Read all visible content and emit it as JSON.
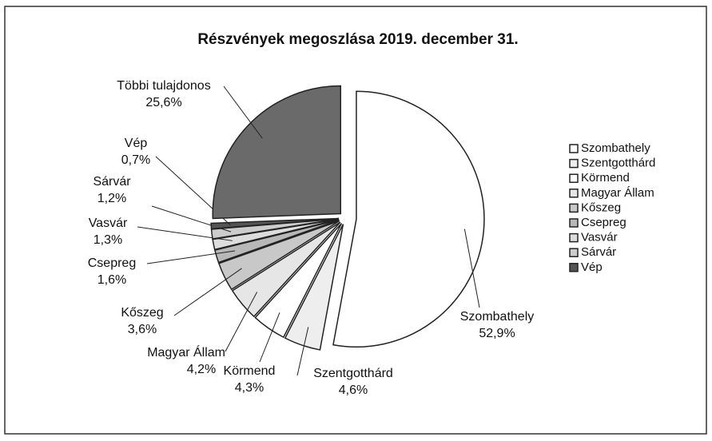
{
  "chart_data": {
    "type": "pie",
    "title": "Részvények megoszlása   2019. december 31.",
    "categories": [
      "Szombathely",
      "Szentgotthárd",
      "Körmend",
      "Magyar Állam",
      "Kőszeg",
      "Csepreg",
      "Vasvár",
      "Sárvár",
      "Vép",
      "Többi tulajdonos"
    ],
    "values": [
      52.9,
      4.6,
      4.3,
      4.2,
      3.6,
      1.6,
      1.3,
      1.2,
      0.7,
      25.6
    ],
    "value_labels": [
      "52,9%",
      "4,6%",
      "4,3%",
      "4,2%",
      "3,6%",
      "1,6%",
      "1,3%",
      "1,2%",
      "0,7%",
      "25,6%"
    ],
    "colors": [
      "#ffffff",
      "#eeeeee",
      "#ffffff",
      "#e6e6e6",
      "#c8c8c8",
      "#b8b8b8",
      "#dddddd",
      "#cccccc",
      "#555555",
      "#6a6a6a"
    ],
    "legend": [
      "Szombathely",
      "Szentgotthárd",
      "Körmend",
      "Magyar Állam",
      "Kőszeg",
      "Csepreg",
      "Vasvár",
      "Sárvár",
      "Vép"
    ],
    "legend_position": "right"
  }
}
